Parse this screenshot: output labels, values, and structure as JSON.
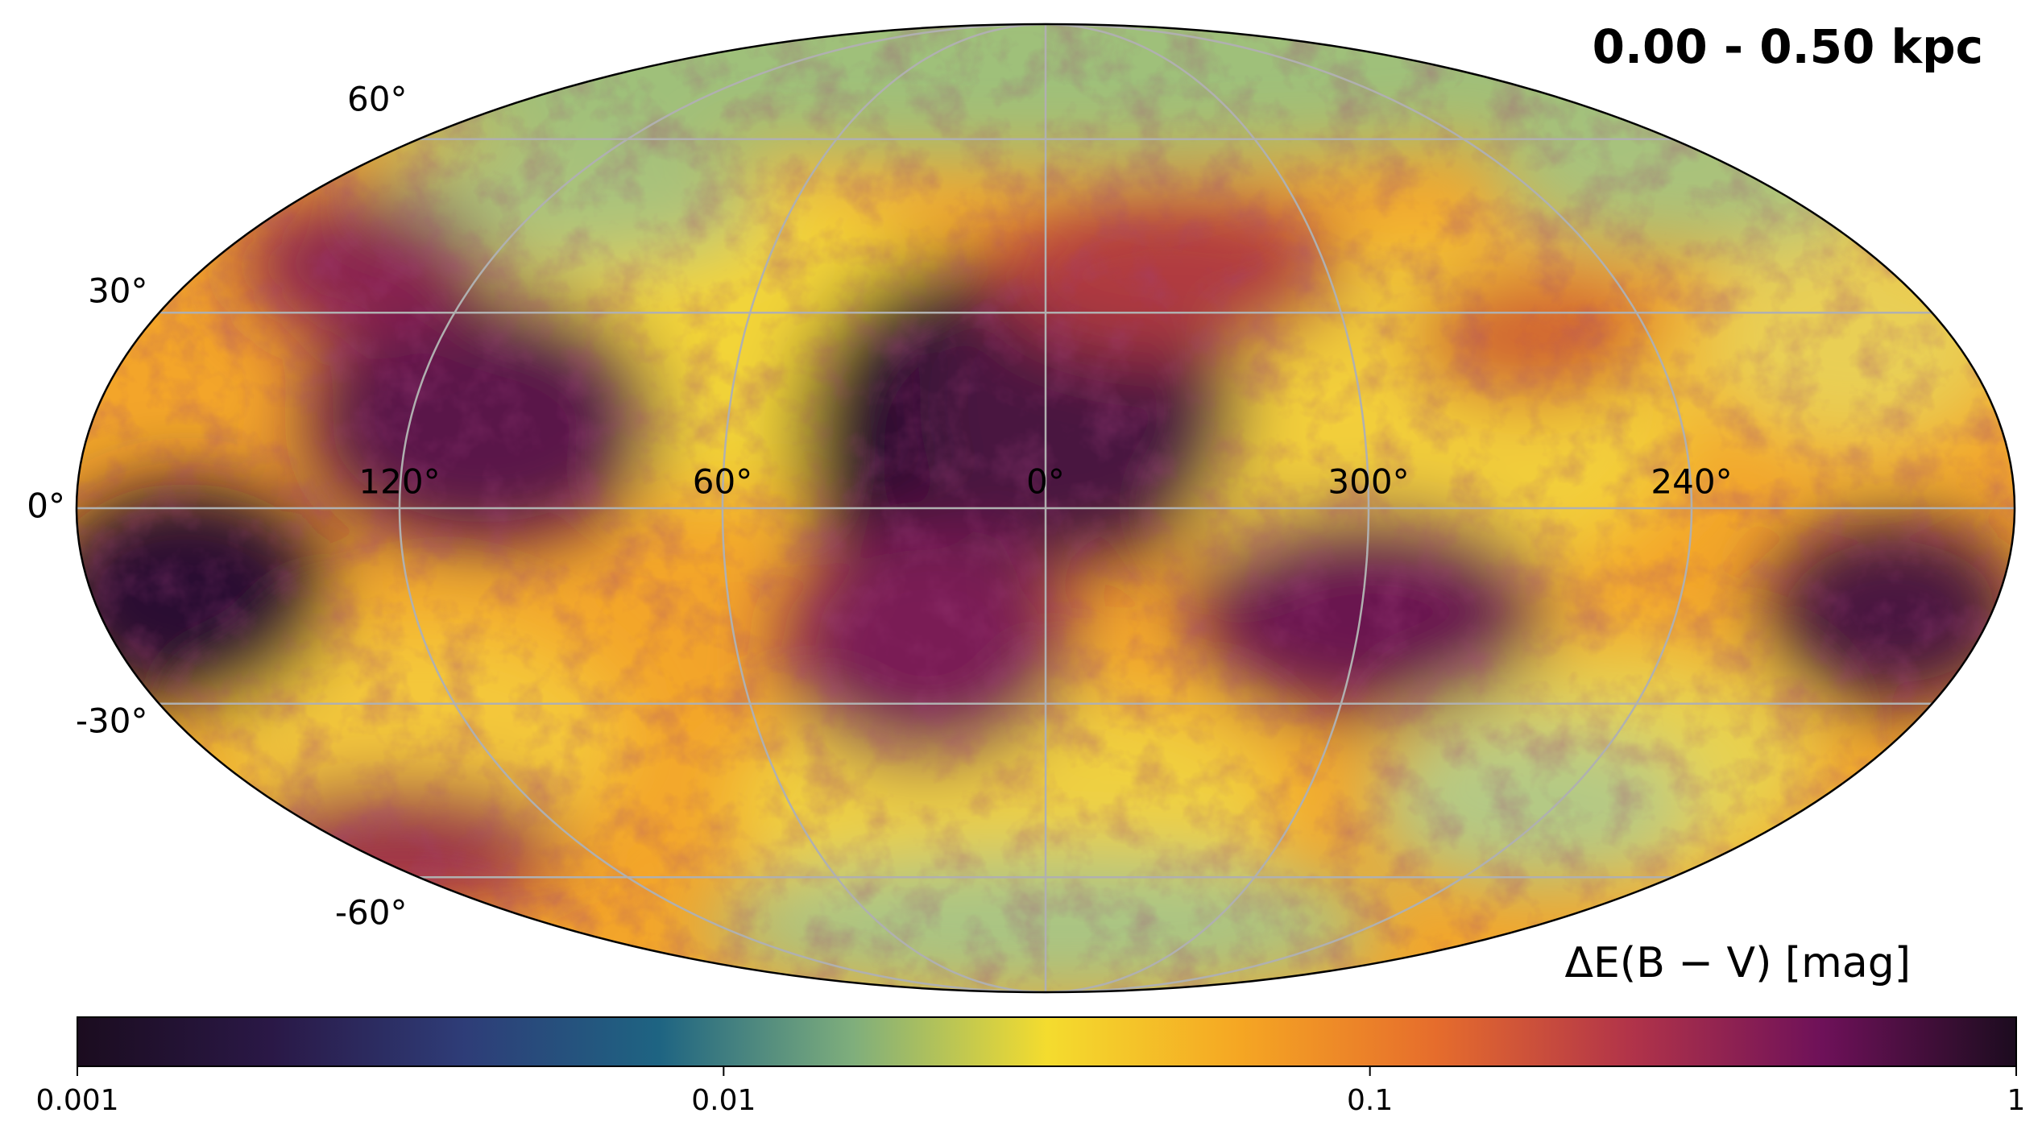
{
  "chart_data": {
    "type": "map",
    "projection": "mollweide",
    "title": "0.00 - 0.50 kpc",
    "colorbar_label": "ΔE(B − V) [mag]",
    "colorbar": {
      "lim": [
        0.001,
        1
      ],
      "ticks": [
        0.001,
        0.01,
        0.1,
        1
      ],
      "log": true,
      "colormap": [
        "#1b0c1f",
        "#2a1846",
        "#2e3d78",
        "#1e6482",
        "#7fae7c",
        "#f4dc2e",
        "#f5a623",
        "#e66d2c",
        "#b23449",
        "#6e1159",
        "#1c0c1f"
      ]
    },
    "xticks": [
      {
        "value": 120,
        "label": "120°"
      },
      {
        "value": 60,
        "label": "60°"
      },
      {
        "value": 0,
        "label": "0°"
      },
      {
        "value": 300,
        "label": "300°"
      },
      {
        "value": 240,
        "label": "240°"
      }
    ],
    "yticks": [
      {
        "value": 60,
        "label": "60°"
      },
      {
        "value": 30,
        "label": "30°"
      },
      {
        "value": 0,
        "label": "0°"
      },
      {
        "value": -30,
        "label": "-30°"
      },
      {
        "value": -60,
        "label": "-60°"
      }
    ],
    "grid": true
  }
}
